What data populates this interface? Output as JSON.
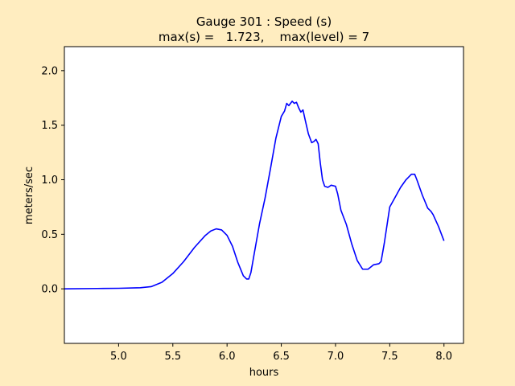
{
  "figure": {
    "background": "#ffedc0",
    "axes_background": "#ffffff"
  },
  "chart_data": {
    "type": "line",
    "title_line1": "Gauge 301 : Speed (s)",
    "title_line2": "max(s) =   1.723,    max(level) = 7",
    "xlabel": "hours",
    "ylabel": "meters/sec",
    "xlim": [
      4.5,
      8.18
    ],
    "ylim": [
      -0.5,
      2.22
    ],
    "xticks": [
      5.0,
      5.5,
      6.0,
      6.5,
      7.0,
      7.5,
      8.0
    ],
    "xtick_labels": [
      "5.0",
      "5.5",
      "6.0",
      "6.5",
      "7.0",
      "7.5",
      "8.0"
    ],
    "yticks": [
      0.0,
      0.5,
      1.0,
      1.5,
      2.0
    ],
    "ytick_labels": [
      "0.0",
      "0.5",
      "1.0",
      "1.5",
      "2.0"
    ],
    "grid": false,
    "series": [
      {
        "color": "#0000ff",
        "x": [
          4.5,
          4.8,
          5.0,
          5.2,
          5.3,
          5.4,
          5.5,
          5.6,
          5.7,
          5.8,
          5.85,
          5.9,
          5.95,
          6.0,
          6.05,
          6.1,
          6.15,
          6.18,
          6.2,
          6.22,
          6.25,
          6.3,
          6.35,
          6.4,
          6.45,
          6.5,
          6.53,
          6.55,
          6.57,
          6.6,
          6.62,
          6.64,
          6.66,
          6.68,
          6.7,
          6.72,
          6.75,
          6.78,
          6.8,
          6.82,
          6.84,
          6.86,
          6.88,
          6.9,
          6.93,
          6.96,
          7.0,
          7.02,
          7.05,
          7.1,
          7.15,
          7.2,
          7.25,
          7.3,
          7.35,
          7.4,
          7.42,
          7.45,
          7.5,
          7.55,
          7.6,
          7.65,
          7.7,
          7.73,
          7.75,
          7.8,
          7.85,
          7.88,
          7.9,
          7.95,
          8.0
        ],
        "y": [
          0.0,
          0.003,
          0.005,
          0.01,
          0.02,
          0.06,
          0.14,
          0.25,
          0.38,
          0.49,
          0.53,
          0.55,
          0.54,
          0.49,
          0.39,
          0.24,
          0.12,
          0.09,
          0.09,
          0.15,
          0.32,
          0.6,
          0.83,
          1.1,
          1.38,
          1.58,
          1.63,
          1.7,
          1.68,
          1.72,
          1.7,
          1.71,
          1.66,
          1.62,
          1.64,
          1.55,
          1.42,
          1.34,
          1.35,
          1.37,
          1.33,
          1.15,
          1.0,
          0.94,
          0.93,
          0.95,
          0.94,
          0.87,
          0.72,
          0.59,
          0.41,
          0.26,
          0.18,
          0.18,
          0.22,
          0.23,
          0.25,
          0.42,
          0.75,
          0.84,
          0.93,
          1.0,
          1.05,
          1.05,
          1.0,
          0.86,
          0.74,
          0.71,
          0.68,
          0.57,
          0.44
        ]
      }
    ]
  }
}
